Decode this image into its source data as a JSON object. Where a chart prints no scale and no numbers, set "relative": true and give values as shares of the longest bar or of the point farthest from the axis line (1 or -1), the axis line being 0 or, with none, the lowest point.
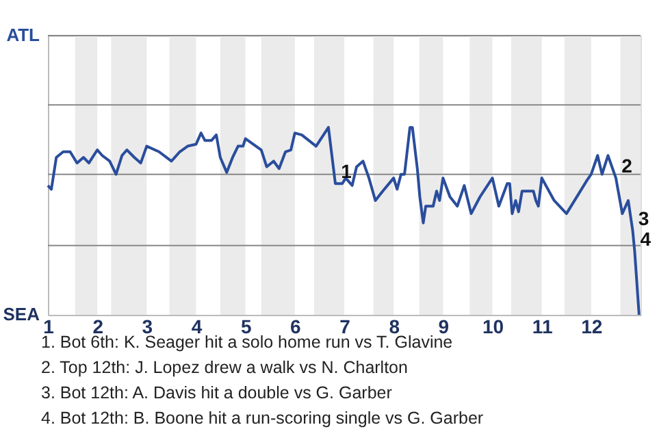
{
  "chart_data": {
    "type": "line",
    "relative": true,
    "x": [
      1.0,
      1.07,
      1.17,
      1.31,
      1.45,
      1.59,
      1.72,
      1.83,
      2.0,
      2.1,
      2.25,
      2.38,
      2.5,
      2.6,
      2.75,
      2.88,
      3.0,
      3.25,
      3.5,
      3.67,
      3.83,
      4.0,
      4.1,
      4.18,
      4.31,
      4.41,
      4.49,
      4.62,
      4.74,
      4.85,
      4.95,
      5.0,
      5.16,
      5.32,
      5.43,
      5.57,
      5.68,
      5.81,
      5.92,
      6.0,
      6.14,
      6.43,
      6.68,
      6.82,
      6.96,
      7.03,
      7.16,
      7.25,
      7.38,
      7.5,
      7.63,
      7.78,
      8.0,
      8.07,
      8.15,
      8.22,
      8.33,
      8.38,
      8.48,
      8.53,
      8.6,
      8.65,
      8.8,
      8.87,
      8.93,
      9.0,
      9.14,
      9.29,
      9.43,
      9.57,
      9.75,
      10.0,
      10.13,
      10.3,
      10.35,
      10.4,
      10.47,
      10.53,
      10.6,
      10.83,
      10.88,
      10.93,
      11.0,
      11.25,
      11.5,
      11.92,
      12.0,
      12.13,
      12.22,
      12.34,
      12.5,
      12.63,
      12.75,
      12.84,
      12.88,
      12.97
    ],
    "series": [
      {
        "color": "#2a4d9c",
        "values": [
          0.69,
          0.67,
          0.84,
          0.87,
          0.87,
          0.81,
          0.84,
          0.81,
          0.88,
          0.85,
          0.82,
          0.75,
          0.85,
          0.88,
          0.84,
          0.81,
          0.9,
          0.87,
          0.82,
          0.87,
          0.9,
          0.91,
          0.97,
          0.93,
          0.93,
          0.96,
          0.84,
          0.76,
          0.84,
          0.9,
          0.9,
          0.94,
          0.91,
          0.88,
          0.79,
          0.82,
          0.78,
          0.87,
          0.88,
          0.97,
          0.96,
          0.9,
          1.0,
          0.7,
          0.7,
          0.73,
          0.69,
          0.79,
          0.82,
          0.73,
          0.61,
          0.66,
          0.73,
          0.67,
          0.75,
          0.75,
          1.0,
          1.0,
          0.78,
          0.63,
          0.49,
          0.58,
          0.58,
          0.66,
          0.61,
          0.73,
          0.63,
          0.58,
          0.69,
          0.54,
          0.63,
          0.73,
          0.58,
          0.7,
          0.7,
          0.54,
          0.61,
          0.55,
          0.66,
          0.66,
          0.61,
          0.58,
          0.73,
          0.61,
          0.54,
          0.72,
          0.75,
          0.85,
          0.75,
          0.85,
          0.73,
          0.54,
          0.61,
          0.45,
          0.34,
          0.0
        ]
      }
    ],
    "xlim": [
      1,
      13
    ],
    "xticks": [
      1,
      2,
      3,
      4,
      5,
      6,
      7,
      8,
      9,
      10,
      11,
      12
    ],
    "ref_lines": [
      {
        "axis": "y",
        "value": 0.37,
        "color": "#888888"
      },
      {
        "axis": "y",
        "value": 0.75,
        "color": "#888888"
      },
      {
        "axis": "y",
        "value": 1.12,
        "color": "#888888"
      },
      {
        "axis": "y",
        "value": 1.49,
        "color": "#888888"
      }
    ],
    "marker": "none",
    "line_style": "solid",
    "bands": [
      {
        "axis": "x",
        "from": 1.55,
        "to": 2,
        "color": "#ebebeb"
      },
      {
        "axis": "x",
        "from": 2.28,
        "to": 3,
        "color": "#ebebeb"
      },
      {
        "axis": "x",
        "from": 3.46,
        "to": 4,
        "color": "#ebebeb"
      },
      {
        "axis": "x",
        "from": 4.49,
        "to": 5,
        "color": "#ebebeb"
      },
      {
        "axis": "x",
        "from": 5.32,
        "to": 6,
        "color": "#ebebeb"
      },
      {
        "axis": "x",
        "from": 6.39,
        "to": 7,
        "color": "#ebebeb"
      },
      {
        "axis": "x",
        "from": 7.59,
        "to": 8,
        "color": "#ebebeb"
      },
      {
        "axis": "x",
        "from": 8.52,
        "to": 9,
        "color": "#ebebeb"
      },
      {
        "axis": "x",
        "from": 9.54,
        "to": 10,
        "color": "#ebebeb"
      },
      {
        "axis": "x",
        "from": 10.38,
        "to": 11,
        "color": "#ebebeb"
      },
      {
        "axis": "x",
        "from": 11.46,
        "to": 12,
        "color": "#ebebeb"
      },
      {
        "axis": "x",
        "from": 12.59,
        "to": 13,
        "color": "#ebebeb"
      }
    ],
    "annotations": [
      "ATL",
      "SEA",
      {
        "text": "1",
        "x": 6.82,
        "y": 0.7
      },
      {
        "text": "2",
        "x": 12.5,
        "y": 0.73
      },
      {
        "text": "3",
        "x": 12.84,
        "y": 0.45
      },
      {
        "text": "4",
        "x": 12.88,
        "y": 0.34
      },
      "1. Bot 6th: K. Seager hit a solo home run vs T. Glavine",
      "2. Top 12th: J. Lopez drew a walk vs N. Charlton",
      "3. Bot 12th: A. Davis hit a double vs G. Garber",
      "4. Bot 12th: B. Boone hit a run-scoring single vs G. Garber"
    ]
  }
}
